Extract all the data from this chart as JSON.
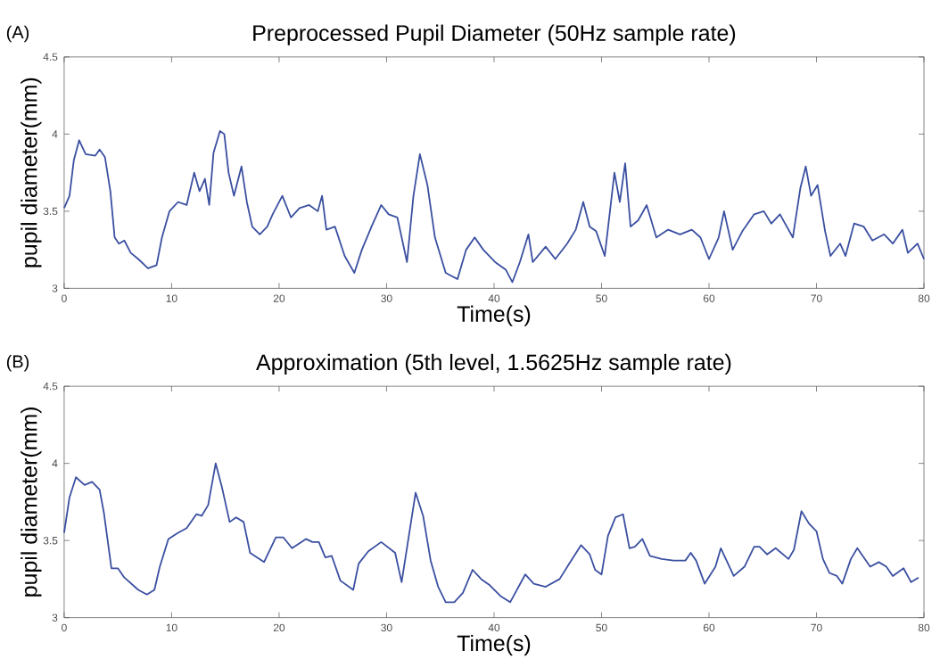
{
  "chart_data": [
    {
      "type": "line",
      "title": "Preprocessed Pupil Diameter (50Hz sample rate)",
      "xlabel": "Time(s)",
      "ylabel": "pupil diameter(mm)",
      "annotations": [
        "(A)"
      ],
      "color": "#3a4fa0",
      "x": [
        0,
        0.5,
        0.9,
        1.4,
        2.0,
        2.9,
        3.3,
        3.8,
        4.3,
        4.7,
        5.1,
        5.6,
        6.2,
        6.9,
        7.8,
        8.6,
        9.1,
        9.8,
        10.6,
        11.4,
        12.1,
        12.6,
        13.1,
        13.5,
        13.9,
        14.5,
        14.9,
        15.3,
        15.8,
        16.5,
        17.0,
        17.5,
        18.2,
        18.9,
        19.4,
        20.3,
        21.1,
        21.9,
        22.8,
        23.6,
        24.0,
        24.4,
        25.2,
        26.1,
        27.0,
        27.7,
        28.6,
        29.5,
        30.2,
        31.0,
        31.9,
        32.5,
        33.1,
        33.8,
        34.5,
        35.5,
        36.6,
        37.4,
        38.2,
        39.0,
        40.1,
        41.1,
        41.7,
        42.4,
        43.2,
        43.6,
        44.8,
        45.7,
        46.8,
        47.6,
        48.3,
        48.9,
        49.5,
        50.3,
        51.2,
        51.7,
        52.2,
        52.7,
        53.4,
        54.2,
        55.1,
        56.2,
        57.3,
        58.4,
        59.2,
        60.0,
        60.9,
        61.4,
        62.2,
        63.1,
        64.2,
        65.1,
        65.8,
        66.6,
        67.8,
        68.5,
        69.0,
        69.5,
        70.1,
        70.8,
        71.3,
        72.2,
        72.7,
        73.5,
        74.4,
        75.2,
        76.3,
        77.1,
        78.0,
        78.5,
        79.4,
        80.0
      ],
      "values": [
        3.52,
        3.6,
        3.83,
        3.96,
        3.87,
        3.86,
        3.9,
        3.85,
        3.63,
        3.33,
        3.29,
        3.31,
        3.23,
        3.19,
        3.13,
        3.15,
        3.33,
        3.5,
        3.56,
        3.54,
        3.75,
        3.63,
        3.71,
        3.54,
        3.88,
        4.02,
        4.0,
        3.75,
        3.6,
        3.79,
        3.56,
        3.4,
        3.35,
        3.4,
        3.48,
        3.6,
        3.46,
        3.52,
        3.54,
        3.5,
        3.6,
        3.38,
        3.4,
        3.21,
        3.1,
        3.25,
        3.4,
        3.54,
        3.48,
        3.46,
        3.17,
        3.6,
        3.87,
        3.67,
        3.33,
        3.1,
        3.06,
        3.25,
        3.33,
        3.25,
        3.17,
        3.12,
        3.04,
        3.17,
        3.35,
        3.17,
        3.27,
        3.19,
        3.29,
        3.38,
        3.56,
        3.4,
        3.37,
        3.21,
        3.75,
        3.56,
        3.81,
        3.4,
        3.44,
        3.54,
        3.33,
        3.38,
        3.35,
        3.38,
        3.33,
        3.19,
        3.33,
        3.5,
        3.25,
        3.37,
        3.48,
        3.5,
        3.42,
        3.48,
        3.33,
        3.65,
        3.79,
        3.6,
        3.67,
        3.37,
        3.21,
        3.29,
        3.21,
        3.42,
        3.4,
        3.31,
        3.35,
        3.29,
        3.38,
        3.23,
        3.29,
        3.19
      ],
      "xlim": [
        0,
        80
      ],
      "ylim": [
        3,
        4.5
      ],
      "xticks": [
        0,
        10,
        20,
        30,
        40,
        50,
        60,
        70,
        80
      ],
      "yticks": [
        3,
        3.5,
        4,
        4.5
      ]
    },
    {
      "type": "line",
      "title": "Approximation (5th level, 1.5625Hz sample rate)",
      "xlabel": "Time(s)",
      "ylabel": "pupil diameter(mm)",
      "annotations": [
        "(B)"
      ],
      "color": "#3a4fa0",
      "x": [
        0,
        0.5,
        1.1,
        1.9,
        2.6,
        3.3,
        3.7,
        4.4,
        5.0,
        5.6,
        6.9,
        7.7,
        8.4,
        8.9,
        9.7,
        10.6,
        11.4,
        12.3,
        12.8,
        13.4,
        14.1,
        14.7,
        15.4,
        16.0,
        16.7,
        17.3,
        18.6,
        19.7,
        20.4,
        21.2,
        22.5,
        23.1,
        23.7,
        24.3,
        24.9,
        25.7,
        26.9,
        27.4,
        28.3,
        29.5,
        30.8,
        31.4,
        32.7,
        33.4,
        34.1,
        34.8,
        35.5,
        36.3,
        37.1,
        38.0,
        38.8,
        39.6,
        40.6,
        41.5,
        42.9,
        43.7,
        44.8,
        46.1,
        47.0,
        48.1,
        48.9,
        49.4,
        50.0,
        50.6,
        51.3,
        52.0,
        52.6,
        53.1,
        53.8,
        54.5,
        55.6,
        56.7,
        57.8,
        58.3,
        58.8,
        59.6,
        60.6,
        61.1,
        62.3,
        63.3,
        64.2,
        64.7,
        65.4,
        66.2,
        67.4,
        67.9,
        68.6,
        69.3,
        70.0,
        70.6,
        71.2,
        71.9,
        72.4,
        73.2,
        73.8,
        75.0,
        75.8,
        76.5,
        77.1,
        78.1,
        78.8,
        79.5
      ],
      "values": [
        3.55,
        3.78,
        3.91,
        3.86,
        3.88,
        3.83,
        3.68,
        3.32,
        3.32,
        3.26,
        3.18,
        3.15,
        3.18,
        3.33,
        3.51,
        3.55,
        3.58,
        3.67,
        3.66,
        3.73,
        4.0,
        3.84,
        3.62,
        3.65,
        3.62,
        3.42,
        3.36,
        3.52,
        3.52,
        3.45,
        3.51,
        3.49,
        3.49,
        3.39,
        3.4,
        3.24,
        3.18,
        3.35,
        3.43,
        3.49,
        3.42,
        3.23,
        3.81,
        3.66,
        3.37,
        3.2,
        3.1,
        3.1,
        3.16,
        3.31,
        3.25,
        3.21,
        3.14,
        3.1,
        3.28,
        3.22,
        3.2,
        3.25,
        3.35,
        3.47,
        3.41,
        3.31,
        3.28,
        3.53,
        3.65,
        3.67,
        3.45,
        3.46,
        3.51,
        3.4,
        3.38,
        3.37,
        3.37,
        3.42,
        3.37,
        3.22,
        3.33,
        3.45,
        3.27,
        3.33,
        3.46,
        3.46,
        3.41,
        3.45,
        3.38,
        3.44,
        3.69,
        3.61,
        3.56,
        3.38,
        3.29,
        3.27,
        3.22,
        3.38,
        3.45,
        3.33,
        3.36,
        3.33,
        3.27,
        3.32,
        3.23,
        3.26
      ],
      "xlim": [
        0,
        80
      ],
      "ylim": [
        3,
        4.5
      ],
      "xticks": [
        0,
        10,
        20,
        30,
        40,
        50,
        60,
        70,
        80
      ],
      "yticks": [
        3,
        3.5,
        4,
        4.5
      ]
    }
  ]
}
